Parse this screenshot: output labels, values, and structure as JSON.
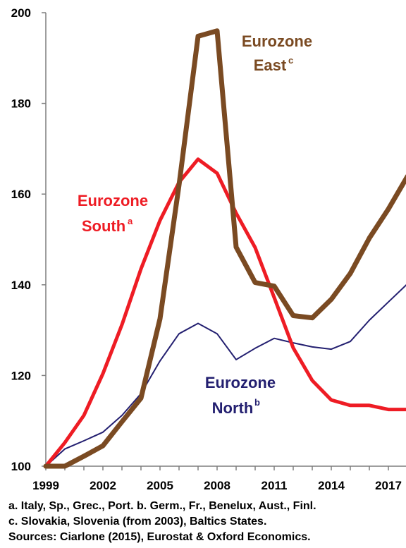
{
  "chart_data": {
    "type": "line",
    "x": [
      1999,
      2000,
      2001,
      2002,
      2003,
      2004,
      2005,
      2006,
      2007,
      2008,
      2009,
      2010,
      2011,
      2012,
      2013,
      2014,
      2015,
      2016,
      2017,
      2018
    ],
    "x_ticks": [
      "1999",
      "2002",
      "2005",
      "2008",
      "2011",
      "2014",
      "2017"
    ],
    "y_ticks": [
      "100",
      "120",
      "140",
      "160",
      "180",
      "200"
    ],
    "ylim": [
      100,
      200
    ],
    "grid": false,
    "series": [
      {
        "name": "Eurozone East",
        "superscript": "c",
        "label_lines": [
          "Eurozone",
          "East"
        ],
        "color": "#7a4a22",
        "values": [
          100,
          100,
          102.2,
          104.5,
          109.8,
          115,
          132.5,
          162,
          194.8,
          196,
          148.3,
          140.5,
          139.7,
          133.2,
          132.7,
          136.8,
          142.5,
          150.3,
          156.7,
          163.9
        ]
      },
      {
        "name": "Eurozone South",
        "superscript": "a",
        "label_lines": [
          "Eurozone",
          "South"
        ],
        "color": "#ee1c24",
        "values": [
          100,
          105.2,
          111.2,
          120.4,
          131.2,
          143.5,
          154.2,
          162.6,
          167.7,
          164.6,
          155.8,
          148.2,
          137.2,
          126.1,
          118.9,
          114.6,
          113.4,
          113.4,
          112.5,
          112.5
        ]
      },
      {
        "name": "Eurozone North",
        "superscript": "b",
        "label_lines": [
          "Eurozone",
          "North"
        ],
        "color": "#231f70",
        "values": [
          100,
          103.8,
          105.6,
          107.5,
          111.2,
          116,
          123.2,
          129.2,
          131.5,
          129.2,
          123.5,
          126,
          128.2,
          127.2,
          126.3,
          125.8,
          127.5,
          132.2,
          136.2,
          140.2
        ]
      }
    ]
  },
  "footnotes": {
    "line1": "a. Italy, Sp., Grec., Port.  b. Germ., Fr., Benelux, Aust., Finl.",
    "line2": "c. Slovakia, Slovenia (from 2003), Baltics States.",
    "line3": "Sources: Ciarlone (2015), Eurostat & Oxford Economics."
  }
}
